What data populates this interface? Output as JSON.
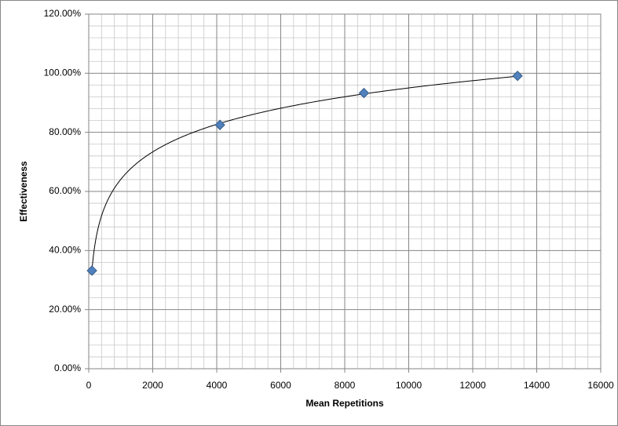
{
  "chart_data": {
    "type": "scatter",
    "x_label": "Mean Repetitions",
    "y_label": "Effectiveness",
    "series": [
      {
        "name": "Effectiveness",
        "color": "#4f81bd",
        "x": [
          100,
          4100,
          8600,
          13400
        ],
        "values": [
          33.2,
          82.5,
          93.3,
          99.1
        ]
      }
    ],
    "trendline": "logarithmic",
    "xlim": [
      0,
      16000
    ],
    "xticks": [
      0,
      2000,
      4000,
      6000,
      8000,
      10000,
      12000,
      14000,
      16000
    ],
    "ylim": [
      0,
      120
    ],
    "yticks": [
      {
        "value": 0,
        "label": "0.00%"
      },
      {
        "value": 20,
        "label": "20.00%"
      },
      {
        "value": 40,
        "label": "40.00%"
      },
      {
        "value": 60,
        "label": "60.00%"
      },
      {
        "value": 80,
        "label": "80.00%"
      },
      {
        "value": 100,
        "label": "100.00%"
      },
      {
        "value": 120,
        "label": "120.00%"
      }
    ],
    "grid": true,
    "minor_divisions": 5
  }
}
